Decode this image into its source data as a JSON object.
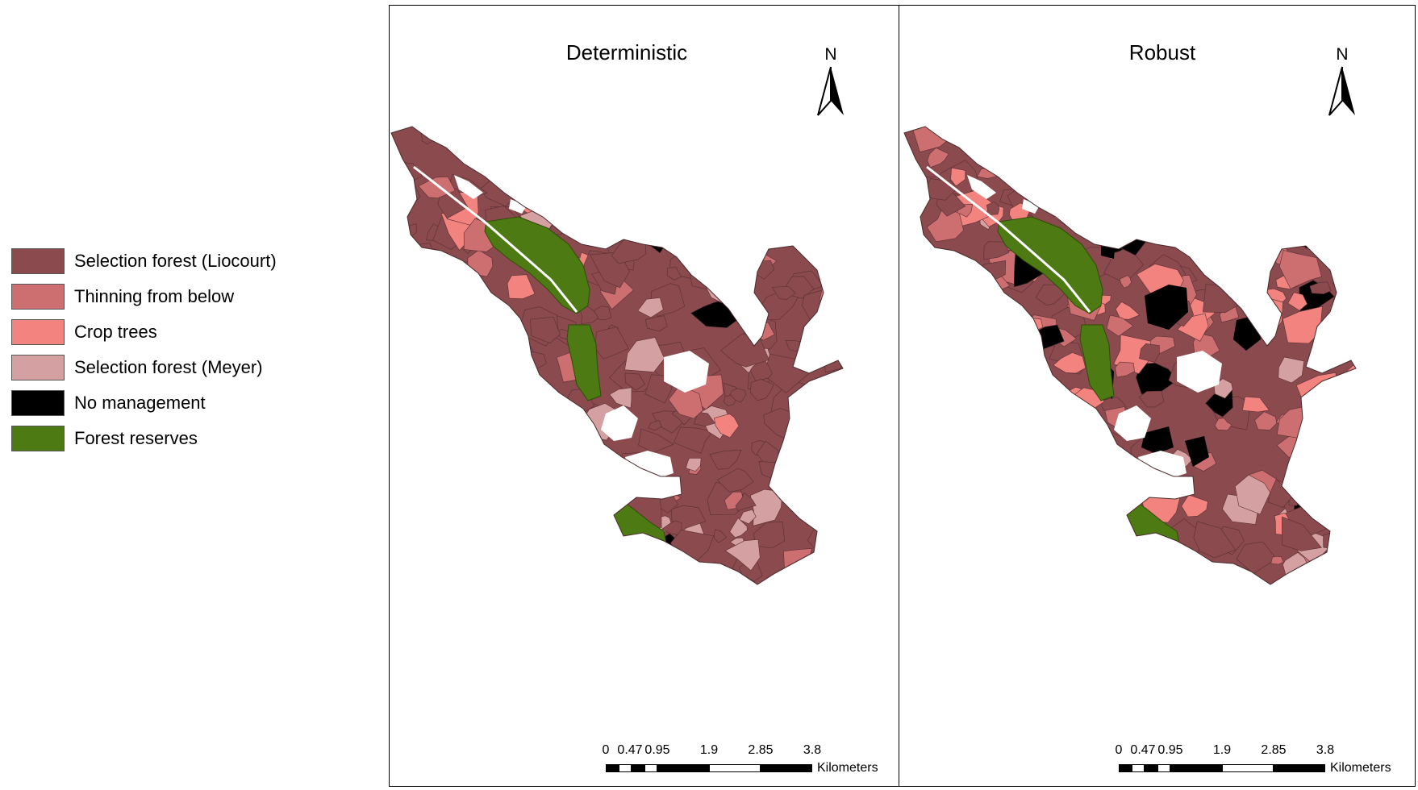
{
  "legend": {
    "items": [
      {
        "label": "Selection forest (Liocourt)",
        "color": "#8a4a4e"
      },
      {
        "label": "Thinning from below",
        "color": "#cd6e70"
      },
      {
        "label": "Crop trees",
        "color": "#f2837f"
      },
      {
        "label": "Selection forest (Meyer)",
        "color": "#d5a0a1"
      },
      {
        "label": "No management",
        "color": "#000000"
      },
      {
        "label": "Forest reserves",
        "color": "#4d7a12"
      }
    ]
  },
  "maps": [
    {
      "title": "Deterministic",
      "north_label": "N",
      "variant": "deterministic"
    },
    {
      "title": "Robust",
      "north_label": "N",
      "variant": "robust"
    }
  ],
  "scale_bar": {
    "ticks": [
      "0",
      "0.47",
      "0.95",
      "1.9",
      "2.85",
      "3.8"
    ],
    "unit": "Kilometers"
  }
}
